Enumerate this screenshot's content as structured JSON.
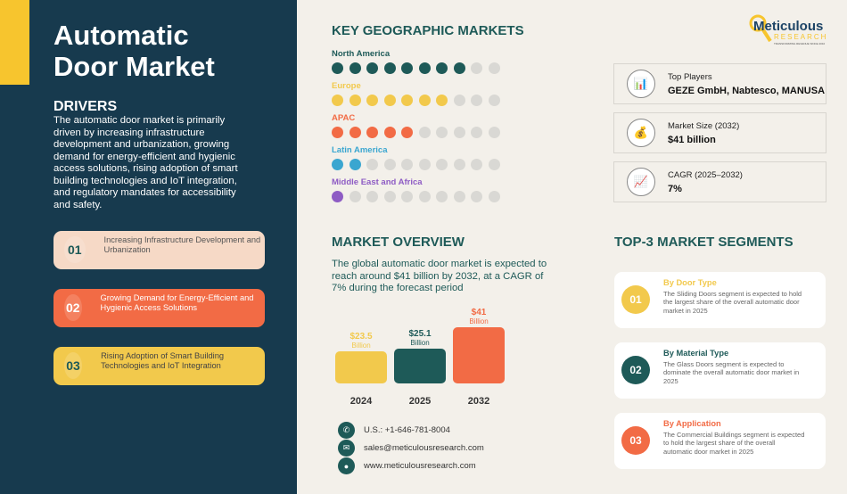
{
  "colors": {
    "navy": "#173a4e",
    "teal": "#1e5a58",
    "yellow": "#f2c94c",
    "orange": "#f26b45",
    "blue": "#3aa6d0",
    "purple": "#8e5cc4",
    "grey": "#d9d8d4"
  },
  "title": [
    "Automatic",
    "Door Market"
  ],
  "drivers": {
    "heading": "DRIVERS",
    "text": "The automatic door market is primarily driven by increasing infrastructure development and urbanization, growing demand for energy-efficient and hygienic access solutions, rising adoption of smart building technologies and IoT integration, and regulatory mandates for accessibility and safety.",
    "items": [
      {
        "num": "01",
        "text": "Increasing Infrastructure Development and Urbanization",
        "bg": "#f6d9c6",
        "fg": "#555",
        "numfg": "#1e5a58"
      },
      {
        "num": "02",
        "text": "Growing Demand for Energy-Efficient and Hygienic Access Solutions",
        "bg": "#f26b45",
        "fg": "#fff",
        "numfg": "#fff"
      },
      {
        "num": "03",
        "text": "Rising Adoption of Smart Building Technologies and IoT Integration",
        "bg": "#f2c94c",
        "fg": "#444",
        "numfg": "#1e5a58"
      }
    ]
  },
  "geo": {
    "heading": "KEY GEOGRAPHIC MARKETS",
    "total_dots": 10,
    "regions": [
      {
        "name": "North America",
        "filled": 8,
        "color": "#1e5a58"
      },
      {
        "name": "Europe",
        "filled": 7,
        "color": "#f2c94c"
      },
      {
        "name": "APAC",
        "filled": 5,
        "color": "#f26b45"
      },
      {
        "name": "Latin America",
        "filled": 2,
        "color": "#3aa6d0"
      },
      {
        "name": "Middle East and Africa",
        "filled": 1,
        "color": "#8e5cc4"
      }
    ]
  },
  "logo": {
    "name": "Meticulous",
    "sub": "RESEARCH",
    "tagline": "TRANSFORMING REVENUE SINCE 2010"
  },
  "stats": [
    {
      "icon": "bar-chart-icon",
      "glyph": "📊",
      "label": "Top Players",
      "value": "GEZE GmbH, Nabtesco, MANUSA"
    },
    {
      "icon": "money-bag-icon",
      "glyph": "💰",
      "label": "Market Size (2032)",
      "value": " $41 billion"
    },
    {
      "icon": "line-chart-icon",
      "glyph": "📈",
      "label": "CAGR (2025–2032)",
      "value": "7%"
    }
  ],
  "overview": {
    "heading": "MARKET OVERVIEW",
    "text": "The global automatic door market is expected to reach around $41 billion by 2032, at a CAGR of 7% during the forecast period"
  },
  "chart_data": {
    "type": "bar",
    "categories": [
      "2024",
      "2025",
      "2032"
    ],
    "values": [
      23.5,
      25.1,
      41
    ],
    "labels": [
      "$23.5",
      "$25.1",
      "$41"
    ],
    "unit": "Billion",
    "colors": [
      "#f2c94c",
      "#1e5a58",
      "#f26b45"
    ]
  },
  "contact": [
    {
      "icon": "phone-icon",
      "glyph": "✆",
      "text": "U.S.: +1-646-781-8004"
    },
    {
      "icon": "mail-icon",
      "glyph": "✉",
      "text": "sales@meticulousresearch.com"
    },
    {
      "icon": "globe-icon",
      "glyph": "●",
      "text": "www.meticulousresearch.com"
    }
  ],
  "segments": {
    "heading": "TOP-3 MARKET SEGMENTS",
    "items": [
      {
        "num": "01",
        "title": "By Door Type",
        "text": "The Sliding Doors segment is expected to hold the largest share of the overall automatic door market in 2025",
        "color": "#f2c94c"
      },
      {
        "num": "02",
        "title": "By Material Type",
        "text": "The Glass Doors segment is expected to dominate the overall automatic door market in 2025",
        "color": "#1e5a58"
      },
      {
        "num": "03",
        "title": "By Application",
        "text": "The Commercial Buildings segment is expected to hold the largest share of the overall automatic door market in 2025",
        "color": "#f26b45"
      }
    ]
  }
}
